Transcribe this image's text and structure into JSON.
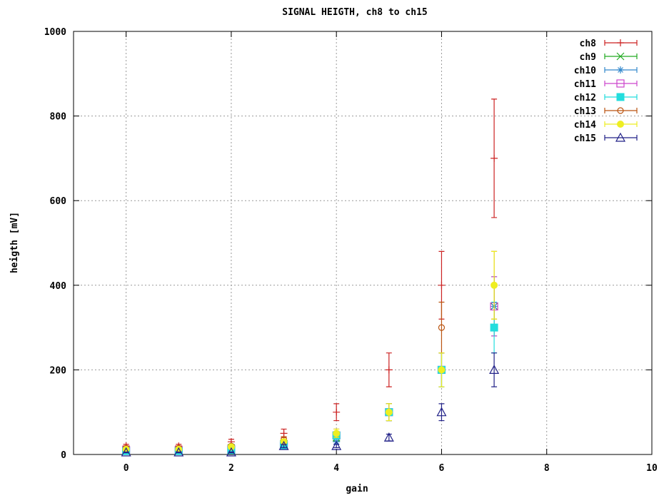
{
  "chart_data": {
    "type": "scatter",
    "title": "SIGNAL HEIGTH, ch8 to ch15",
    "xlabel": "gain",
    "ylabel": "heigth [mV]",
    "xlim": [
      -1,
      10
    ],
    "ylim": [
      0,
      1000
    ],
    "xticks": [
      0,
      2,
      4,
      6,
      8,
      10
    ],
    "yticks": [
      0,
      200,
      400,
      600,
      800,
      1000
    ],
    "grid": true,
    "legend_position": "top-right",
    "error_bars": true,
    "series": [
      {
        "name": "ch8",
        "color": "#cc2222",
        "marker": "plus",
        "x": [
          0,
          1,
          2,
          3,
          4,
          5,
          6,
          7
        ],
        "y": [
          20,
          20,
          30,
          50,
          100,
          200,
          400,
          700
        ],
        "err": [
          4,
          4,
          6,
          10,
          20,
          40,
          80,
          140
        ]
      },
      {
        "name": "ch9",
        "color": "#22aa22",
        "marker": "cross",
        "x": [
          0,
          1,
          2,
          3,
          4,
          5,
          6,
          7
        ],
        "y": [
          10,
          10,
          15,
          25,
          40,
          100,
          200,
          350
        ],
        "err": [
          2,
          2,
          3,
          5,
          8,
          20,
          40,
          70
        ]
      },
      {
        "name": "ch10",
        "color": "#3388cc",
        "marker": "star",
        "x": [
          0,
          1,
          2,
          3,
          4,
          5,
          6,
          7
        ],
        "y": [
          8,
          8,
          10,
          22,
          30,
          100,
          200,
          350
        ],
        "err": [
          2,
          2,
          2,
          4,
          6,
          20,
          40,
          70
        ]
      },
      {
        "name": "ch11",
        "color": "#cc44cc",
        "marker": "open-square",
        "x": [
          0,
          1,
          2,
          3,
          4,
          5,
          6,
          7
        ],
        "y": [
          10,
          10,
          12,
          22,
          45,
          100,
          200,
          350
        ],
        "err": [
          2,
          2,
          2,
          4,
          9,
          20,
          40,
          70
        ]
      },
      {
        "name": "ch12",
        "color": "#22dddd",
        "marker": "filled-square",
        "x": [
          0,
          1,
          2,
          3,
          4,
          5,
          6,
          7
        ],
        "y": [
          8,
          8,
          10,
          22,
          45,
          100,
          200,
          300
        ],
        "err": [
          2,
          2,
          2,
          4,
          9,
          20,
          40,
          60
        ]
      },
      {
        "name": "ch13",
        "color": "#bb5511",
        "marker": "open-circle",
        "x": [
          0,
          1,
          2,
          3,
          4,
          5,
          6,
          7
        ],
        "y": [
          15,
          15,
          20,
          35,
          50,
          100,
          300,
          400
        ],
        "err": [
          3,
          3,
          4,
          7,
          10,
          20,
          60,
          80
        ]
      },
      {
        "name": "ch14",
        "color": "#eeee22",
        "marker": "filled-circle",
        "x": [
          0,
          1,
          2,
          3,
          4,
          5,
          6,
          7
        ],
        "y": [
          12,
          12,
          18,
          30,
          50,
          100,
          200,
          400
        ],
        "err": [
          2,
          2,
          4,
          6,
          10,
          20,
          40,
          80
        ]
      },
      {
        "name": "ch15",
        "color": "#222288",
        "marker": "open-triangle",
        "x": [
          0,
          1,
          2,
          3,
          4,
          5,
          6,
          7
        ],
        "y": [
          5,
          5,
          5,
          20,
          20,
          40,
          100,
          200
        ],
        "err": [
          1,
          1,
          1,
          4,
          4,
          8,
          20,
          40
        ]
      }
    ]
  }
}
